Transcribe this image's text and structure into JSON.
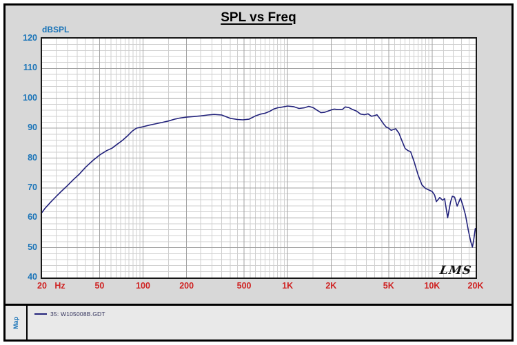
{
  "frame": {
    "background": "#d8d8d8",
    "border_color": "#000000"
  },
  "header": {
    "title": "SPL vs Freq"
  },
  "axis": {
    "y_unit_label": "dBSPL",
    "x_unit_label": "Hz",
    "y_label_color": "#1a74b8",
    "x_label_color": "#cf2323"
  },
  "watermark": {
    "text": "LMS"
  },
  "footer": {
    "map_label": "Map",
    "legend": {
      "swatch_color": "#22227a",
      "label": "35: W105008B.GDT"
    }
  },
  "chart_data": {
    "type": "line",
    "title": "SPL vs Freq",
    "ylabel": "dBSPL",
    "xlabel": "Hz",
    "x_scale": "log",
    "xlim": [
      20,
      20000
    ],
    "ylim": [
      40,
      120
    ],
    "grid": {
      "on": true,
      "db_minor_step": 2,
      "db_major_step": 10,
      "minor_color": "#cfcfcf",
      "major_color": "#a2a2a2",
      "major_freqs": [
        50,
        100,
        200,
        500,
        1000,
        2000,
        5000,
        10000
      ],
      "minor_freqs": [
        25,
        30,
        35,
        40,
        45,
        55,
        60,
        65,
        70,
        75,
        80,
        85,
        90,
        95,
        150,
        250,
        300,
        350,
        400,
        450,
        550,
        600,
        650,
        700,
        750,
        800,
        850,
        900,
        950,
        1500,
        2500,
        3000,
        3500,
        4000,
        4500,
        5500,
        6000,
        6500,
        7000,
        7500,
        8000,
        8500,
        9000,
        9500,
        12000,
        14000,
        16000,
        18000
      ]
    },
    "y_ticks": [
      120,
      110,
      100,
      90,
      80,
      70,
      60,
      50,
      40
    ],
    "x_ticks": [
      {
        "f": 20,
        "label": "20"
      },
      {
        "f": 50,
        "label": "50"
      },
      {
        "f": 100,
        "label": "100"
      },
      {
        "f": 200,
        "label": "200"
      },
      {
        "f": 500,
        "label": "500"
      },
      {
        "f": 1000,
        "label": "1K"
      },
      {
        "f": 2000,
        "label": "2K"
      },
      {
        "f": 5000,
        "label": "5K"
      },
      {
        "f": 10000,
        "label": "10K"
      },
      {
        "f": 20000,
        "label": "20K"
      }
    ],
    "legend_position": "bottom-strip",
    "series": [
      {
        "name": "35: W105008B.GDT",
        "color": "#20207a",
        "points": [
          [
            20,
            61.8
          ],
          [
            21,
            63.2
          ],
          [
            23,
            65.3
          ],
          [
            25,
            67.1
          ],
          [
            27,
            68.7
          ],
          [
            30,
            70.8
          ],
          [
            33,
            72.8
          ],
          [
            36,
            74.5
          ],
          [
            40,
            76.9
          ],
          [
            45,
            79.2
          ],
          [
            50,
            81.0
          ],
          [
            56,
            82.5
          ],
          [
            61,
            83.3
          ],
          [
            67,
            84.8
          ],
          [
            72,
            85.9
          ],
          [
            78,
            87.4
          ],
          [
            84,
            89.0
          ],
          [
            90,
            90.0
          ],
          [
            100,
            90.5
          ],
          [
            110,
            91.0
          ],
          [
            120,
            91.4
          ],
          [
            135,
            91.9
          ],
          [
            150,
            92.4
          ],
          [
            165,
            93.0
          ],
          [
            180,
            93.4
          ],
          [
            200,
            93.7
          ],
          [
            225,
            93.9
          ],
          [
            250,
            94.1
          ],
          [
            280,
            94.4
          ],
          [
            310,
            94.6
          ],
          [
            350,
            94.4
          ],
          [
            400,
            93.3
          ],
          [
            450,
            92.9
          ],
          [
            490,
            92.8
          ],
          [
            540,
            93.0
          ],
          [
            600,
            94.1
          ],
          [
            650,
            94.7
          ],
          [
            700,
            95.0
          ],
          [
            750,
            95.6
          ],
          [
            800,
            96.4
          ],
          [
            850,
            96.8
          ],
          [
            900,
            97.0
          ],
          [
            1000,
            97.4
          ],
          [
            1100,
            97.2
          ],
          [
            1200,
            96.6
          ],
          [
            1300,
            96.8
          ],
          [
            1400,
            97.3
          ],
          [
            1500,
            96.9
          ],
          [
            1600,
            96.0
          ],
          [
            1700,
            95.2
          ],
          [
            1800,
            95.3
          ],
          [
            1900,
            95.7
          ],
          [
            2000,
            96.1
          ],
          [
            2100,
            96.4
          ],
          [
            2250,
            96.2
          ],
          [
            2400,
            96.3
          ],
          [
            2500,
            97.1
          ],
          [
            2650,
            96.9
          ],
          [
            2800,
            96.3
          ],
          [
            3000,
            95.7
          ],
          [
            3200,
            94.7
          ],
          [
            3400,
            94.5
          ],
          [
            3600,
            94.8
          ],
          [
            3800,
            94.0
          ],
          [
            4000,
            94.2
          ],
          [
            4150,
            94.5
          ],
          [
            4350,
            93.2
          ],
          [
            4600,
            91.5
          ],
          [
            4800,
            90.4
          ],
          [
            5000,
            90.0
          ],
          [
            5200,
            89.3
          ],
          [
            5600,
            89.8
          ],
          [
            5900,
            88.3
          ],
          [
            6200,
            85.6
          ],
          [
            6500,
            83.2
          ],
          [
            6800,
            82.5
          ],
          [
            7100,
            82.1
          ],
          [
            7500,
            78.8
          ],
          [
            8000,
            74.3
          ],
          [
            8500,
            71.0
          ],
          [
            9000,
            69.8
          ],
          [
            9500,
            69.3
          ],
          [
            10000,
            68.8
          ],
          [
            10400,
            67.6
          ],
          [
            10700,
            65.4
          ],
          [
            11300,
            66.8
          ],
          [
            11800,
            65.9
          ],
          [
            12200,
            66.4
          ],
          [
            12800,
            60.0
          ],
          [
            13400,
            65.2
          ],
          [
            13800,
            67.2
          ],
          [
            14300,
            66.9
          ],
          [
            14900,
            63.9
          ],
          [
            15700,
            66.6
          ],
          [
            16300,
            64.2
          ],
          [
            17000,
            61.0
          ],
          [
            17800,
            55.8
          ],
          [
            18500,
            52.0
          ],
          [
            19000,
            50.2
          ],
          [
            19400,
            52.6
          ],
          [
            19900,
            56.4
          ]
        ]
      }
    ],
    "watermark": "LMS"
  }
}
